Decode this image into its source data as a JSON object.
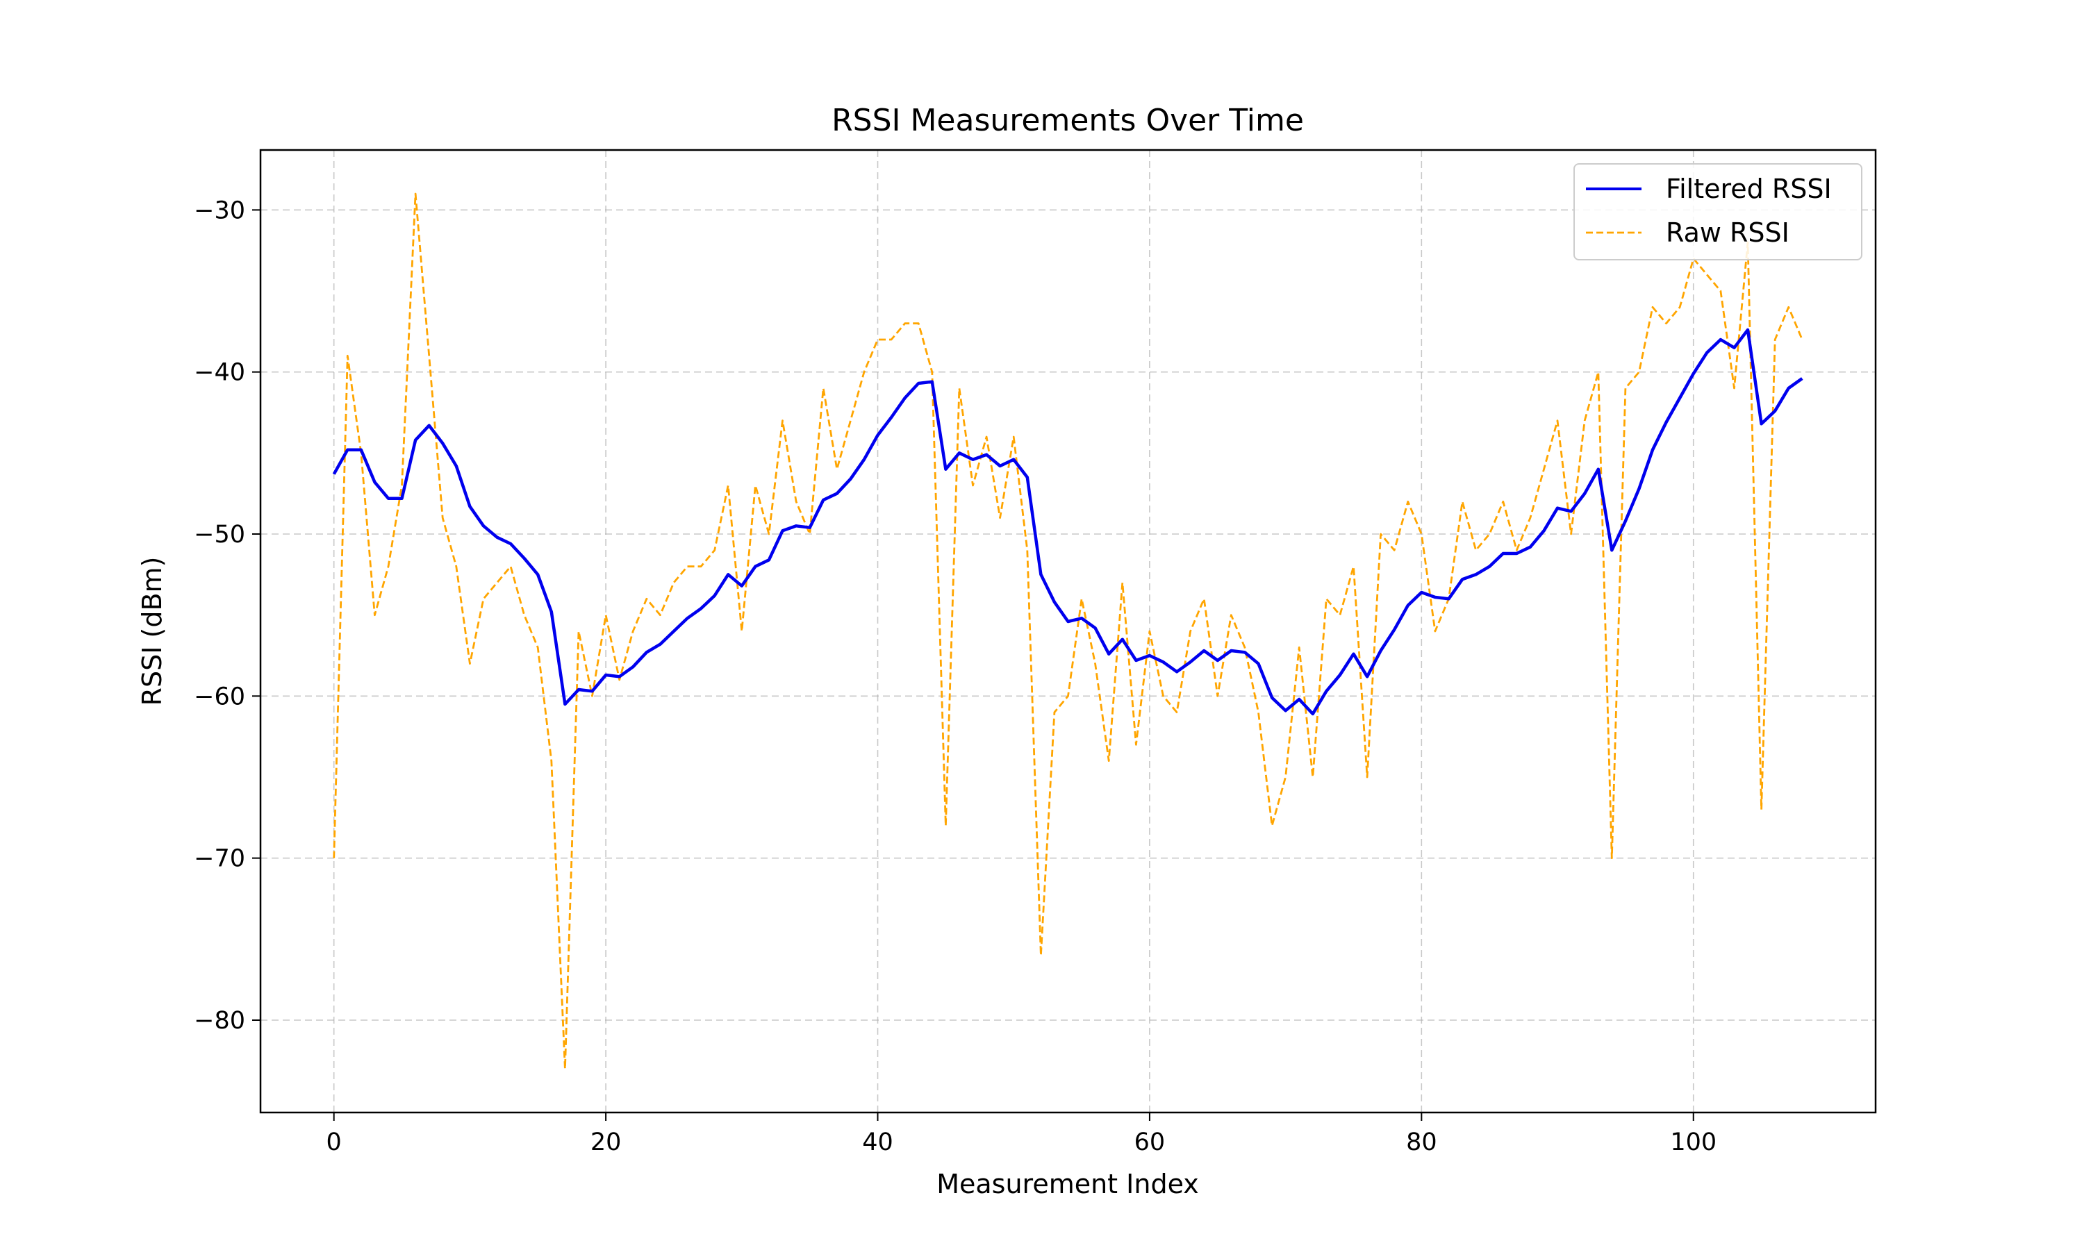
{
  "chart_data": {
    "type": "line",
    "title": "RSSI Measurements Over Time",
    "xlabel": "Measurement Index",
    "ylabel": "RSSI (dBm)",
    "xlim": [
      -5.4,
      113.4
    ],
    "ylim": [
      -85.7,
      -26.3
    ],
    "x_ticks": [
      0,
      20,
      40,
      60,
      80,
      100
    ],
    "y_ticks": [
      -80,
      -70,
      -60,
      -50,
      -40,
      -30
    ],
    "x_tick_labels": [
      "0",
      "20",
      "40",
      "60",
      "80",
      "100"
    ],
    "y_tick_labels": [
      "−80",
      "−70",
      "−60",
      "−50",
      "−40",
      "−30"
    ],
    "grid": true,
    "legend_position": "top-right",
    "series": [
      {
        "name": "Filtered RSSI",
        "color": "#0000ee",
        "style": "solid",
        "x_start": 0,
        "values": [
          -46.3,
          -44.8,
          -44.8,
          -46.8,
          -47.8,
          -47.8,
          -44.2,
          -43.3,
          -44.4,
          -45.8,
          -48.3,
          -49.5,
          -50.2,
          -50.6,
          -51.5,
          -52.5,
          -54.8,
          -60.5,
          -59.6,
          -59.7,
          -58.7,
          -58.8,
          -58.2,
          -57.3,
          -56.8,
          -56.0,
          -55.2,
          -54.6,
          -53.8,
          -52.5,
          -53.2,
          -52.0,
          -51.6,
          -49.8,
          -49.5,
          -49.6,
          -47.9,
          -47.5,
          -46.6,
          -45.4,
          -43.9,
          -42.8,
          -41.6,
          -40.7,
          -40.6,
          -46.0,
          -45.0,
          -45.4,
          -45.1,
          -45.8,
          -45.4,
          -46.5,
          -52.5,
          -54.2,
          -55.4,
          -55.2,
          -55.8,
          -57.4,
          -56.5,
          -57.8,
          -57.5,
          -57.9,
          -58.5,
          -57.9,
          -57.2,
          -57.8,
          -57.2,
          -57.3,
          -58.0,
          -60.1,
          -60.9,
          -60.2,
          -61.1,
          -59.7,
          -58.7,
          -57.4,
          -58.8,
          -57.2,
          -55.9,
          -54.4,
          -53.6,
          -53.9,
          -54.0,
          -52.8,
          -52.5,
          -52.0,
          -51.2,
          -51.2,
          -50.8,
          -49.8,
          -48.4,
          -48.6,
          -47.5,
          -46.0,
          -51.0,
          -49.2,
          -47.2,
          -44.8,
          -43.1,
          -41.6,
          -40.1,
          -38.8,
          -38.0,
          -38.5,
          -37.4,
          -43.2,
          -42.4,
          -41.0,
          -40.4
        ]
      },
      {
        "name": "Raw RSSI",
        "color": "#ffa500",
        "style": "dashed",
        "x_start": 0,
        "values": [
          -70,
          -39,
          -45,
          -55,
          -52,
          -47,
          -29,
          -39,
          -49,
          -52,
          -58,
          -54,
          -53,
          -52,
          -55,
          -57,
          -64,
          -83,
          -56,
          -60,
          -55,
          -59,
          -56,
          -54,
          -55,
          -53,
          -52,
          -52,
          -51,
          -47,
          -56,
          -47,
          -50,
          -43,
          -48,
          -50,
          -41,
          -46,
          -43,
          -40,
          -38,
          -38,
          -37,
          -37,
          -40,
          -68,
          -41,
          -47,
          -44,
          -49,
          -44,
          -51,
          -76,
          -61,
          -60,
          -54,
          -58,
          -64,
          -53,
          -63,
          -56,
          -60,
          -61,
          -56,
          -54,
          -60,
          -55,
          -57,
          -61,
          -68,
          -65,
          -57,
          -65,
          -54,
          -55,
          -52,
          -65,
          -50,
          -51,
          -48,
          -50,
          -56,
          -54,
          -48,
          -51,
          -50,
          -48,
          -51,
          -49,
          -46,
          -43,
          -50,
          -43,
          -40,
          -70,
          -41,
          -40,
          -36,
          -37,
          -36,
          -33,
          -34,
          -35,
          -41,
          -32,
          -67,
          -38,
          -36,
          -38
        ]
      }
    ]
  }
}
